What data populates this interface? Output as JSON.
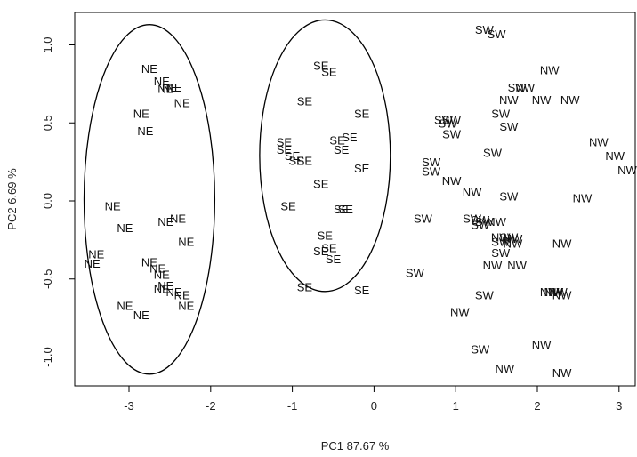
{
  "chart_data": {
    "type": "scatter",
    "title": "",
    "xlabel": "PC1   87.67 %",
    "ylabel": "PC2   6.69 %",
    "xlim": [
      -3.55,
      3.2
    ],
    "ylim": [
      -1.18,
      1.2
    ],
    "x_ticks": [
      "-3",
      "-2",
      "-1",
      "0",
      "1",
      "2",
      "3"
    ],
    "y_ticks": [
      "-1.0",
      "-0.5",
      "0.0",
      "0.5",
      "1.0"
    ],
    "grid": false,
    "legend": "none",
    "groups": [
      "NE",
      "SE",
      "SW",
      "NW"
    ],
    "ellipses": [
      {
        "group": "NE",
        "cx": -2.75,
        "cy": 0.01,
        "rx": 0.8,
        "ry": 1.12
      },
      {
        "group": "SE",
        "cx": -0.6,
        "cy": 0.29,
        "rx": 0.8,
        "ry": 0.87
      }
    ],
    "points": [
      {
        "label": "NE",
        "x": -2.75,
        "y": 0.85
      },
      {
        "label": "NE",
        "x": -2.6,
        "y": 0.77
      },
      {
        "label": "NE",
        "x": -2.5,
        "y": 0.73
      },
      {
        "label": "NE",
        "x": -2.45,
        "y": 0.73
      },
      {
        "label": "NE",
        "x": -2.55,
        "y": 0.72
      },
      {
        "label": "NE",
        "x": -2.35,
        "y": 0.63
      },
      {
        "label": "NE",
        "x": -2.85,
        "y": 0.56
      },
      {
        "label": "NE",
        "x": -2.8,
        "y": 0.45
      },
      {
        "label": "NE",
        "x": -3.2,
        "y": -0.03
      },
      {
        "label": "NE",
        "x": -2.4,
        "y": -0.11
      },
      {
        "label": "NE",
        "x": -2.55,
        "y": -0.13
      },
      {
        "label": "NE",
        "x": -3.05,
        "y": -0.17
      },
      {
        "label": "NE",
        "x": -2.3,
        "y": -0.26
      },
      {
        "label": "NE",
        "x": -3.4,
        "y": -0.34
      },
      {
        "label": "NE",
        "x": -3.45,
        "y": -0.4
      },
      {
        "label": "NE",
        "x": -2.75,
        "y": -0.39
      },
      {
        "label": "NE",
        "x": -2.65,
        "y": -0.43
      },
      {
        "label": "NE",
        "x": -2.6,
        "y": -0.47
      },
      {
        "label": "NE",
        "x": -2.55,
        "y": -0.54
      },
      {
        "label": "NE",
        "x": -2.6,
        "y": -0.56
      },
      {
        "label": "NE",
        "x": -2.45,
        "y": -0.58
      },
      {
        "label": "NE",
        "x": -2.35,
        "y": -0.6
      },
      {
        "label": "NE",
        "x": -2.3,
        "y": -0.67
      },
      {
        "label": "NE",
        "x": -3.05,
        "y": -0.67
      },
      {
        "label": "NE",
        "x": -2.85,
        "y": -0.73
      },
      {
        "label": "SE",
        "x": -0.65,
        "y": 0.87
      },
      {
        "label": "SE",
        "x": -0.55,
        "y": 0.83
      },
      {
        "label": "SE",
        "x": -0.85,
        "y": 0.64
      },
      {
        "label": "SE",
        "x": -0.15,
        "y": 0.56
      },
      {
        "label": "SE",
        "x": -1.1,
        "y": 0.38
      },
      {
        "label": "SE",
        "x": -0.45,
        "y": 0.39
      },
      {
        "label": "SE",
        "x": -0.3,
        "y": 0.41
      },
      {
        "label": "SE",
        "x": -1.1,
        "y": 0.33
      },
      {
        "label": "SE",
        "x": -1.0,
        "y": 0.29
      },
      {
        "label": "SE",
        "x": -0.4,
        "y": 0.33
      },
      {
        "label": "SE",
        "x": -0.95,
        "y": 0.26
      },
      {
        "label": "SE",
        "x": -0.85,
        "y": 0.26
      },
      {
        "label": "SE",
        "x": -0.15,
        "y": 0.21
      },
      {
        "label": "SE",
        "x": -0.65,
        "y": 0.11
      },
      {
        "label": "SE",
        "x": -1.05,
        "y": -0.03
      },
      {
        "label": "SE",
        "x": -0.4,
        "y": -0.05
      },
      {
        "label": "SE",
        "x": -0.35,
        "y": -0.05
      },
      {
        "label": "SE",
        "x": -0.6,
        "y": -0.22
      },
      {
        "label": "SE",
        "x": -0.55,
        "y": -0.3
      },
      {
        "label": "SE",
        "x": -0.65,
        "y": -0.32
      },
      {
        "label": "SE",
        "x": -0.5,
        "y": -0.37
      },
      {
        "label": "SE",
        "x": -0.85,
        "y": -0.55
      },
      {
        "label": "SE",
        "x": -0.15,
        "y": -0.57
      },
      {
        "label": "SW",
        "x": 1.35,
        "y": 1.1
      },
      {
        "label": "SW",
        "x": 1.5,
        "y": 1.07
      },
      {
        "label": "SW",
        "x": 1.75,
        "y": 0.73
      },
      {
        "label": "SW",
        "x": 1.55,
        "y": 0.56
      },
      {
        "label": "SW",
        "x": 0.85,
        "y": 0.52
      },
      {
        "label": "SW",
        "x": 0.95,
        "y": 0.52
      },
      {
        "label": "SW",
        "x": 0.9,
        "y": 0.5
      },
      {
        "label": "SW",
        "x": 1.65,
        "y": 0.48
      },
      {
        "label": "SW",
        "x": 0.95,
        "y": 0.43
      },
      {
        "label": "SW",
        "x": 1.45,
        "y": 0.31
      },
      {
        "label": "SW",
        "x": 0.7,
        "y": 0.25
      },
      {
        "label": "SW",
        "x": 0.7,
        "y": 0.19
      },
      {
        "label": "SW",
        "x": 1.65,
        "y": 0.03
      },
      {
        "label": "SW",
        "x": 0.6,
        "y": -0.11
      },
      {
        "label": "SW",
        "x": 1.2,
        "y": -0.11
      },
      {
        "label": "SW",
        "x": 1.3,
        "y": -0.12
      },
      {
        "label": "SW",
        "x": 1.35,
        "y": -0.13
      },
      {
        "label": "SW",
        "x": 1.3,
        "y": -0.15
      },
      {
        "label": "SW",
        "x": 1.65,
        "y": -0.23
      },
      {
        "label": "SW",
        "x": 1.55,
        "y": -0.26
      },
      {
        "label": "SW",
        "x": 1.55,
        "y": -0.33
      },
      {
        "label": "SW",
        "x": 0.5,
        "y": -0.46
      },
      {
        "label": "SW",
        "x": 1.35,
        "y": -0.6
      },
      {
        "label": "SW",
        "x": 1.3,
        "y": -0.95
      },
      {
        "label": "NW",
        "x": 2.15,
        "y": 0.84
      },
      {
        "label": "NW",
        "x": 1.85,
        "y": 0.73
      },
      {
        "label": "NW",
        "x": 1.65,
        "y": 0.65
      },
      {
        "label": "NW",
        "x": 2.05,
        "y": 0.65
      },
      {
        "label": "NW",
        "x": 2.4,
        "y": 0.65
      },
      {
        "label": "NW",
        "x": 2.75,
        "y": 0.38
      },
      {
        "label": "NW",
        "x": 2.95,
        "y": 0.29
      },
      {
        "label": "NW",
        "x": 3.1,
        "y": 0.2
      },
      {
        "label": "NW",
        "x": 0.95,
        "y": 0.13
      },
      {
        "label": "NW",
        "x": 1.2,
        "y": 0.06
      },
      {
        "label": "NW",
        "x": 2.55,
        "y": 0.02
      },
      {
        "label": "NW",
        "x": 1.5,
        "y": -0.13
      },
      {
        "label": "NW",
        "x": 1.55,
        "y": -0.23
      },
      {
        "label": "NW",
        "x": 1.7,
        "y": -0.24
      },
      {
        "label": "NW",
        "x": 1.7,
        "y": -0.27
      },
      {
        "label": "NW",
        "x": 2.3,
        "y": -0.27
      },
      {
        "label": "NW",
        "x": 1.45,
        "y": -0.41
      },
      {
        "label": "NW",
        "x": 1.75,
        "y": -0.41
      },
      {
        "label": "NW",
        "x": 2.15,
        "y": -0.58
      },
      {
        "label": "NW",
        "x": 2.2,
        "y": -0.58
      },
      {
        "label": "NW",
        "x": 2.25,
        "y": -0.58
      },
      {
        "label": "NW",
        "x": 2.3,
        "y": -0.6
      },
      {
        "label": "NW",
        "x": 1.05,
        "y": -0.71
      },
      {
        "label": "NW",
        "x": 2.05,
        "y": -0.92
      },
      {
        "label": "NW",
        "x": 1.6,
        "y": -1.07
      },
      {
        "label": "NW",
        "x": 2.3,
        "y": -1.1
      }
    ]
  }
}
